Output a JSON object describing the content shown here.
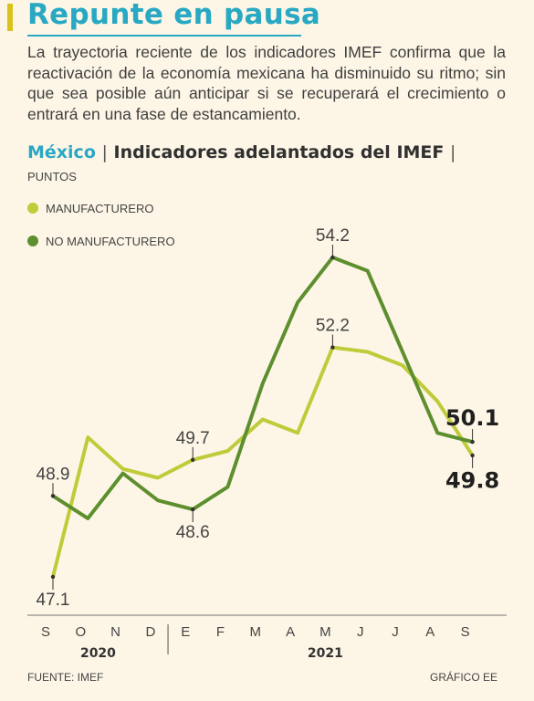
{
  "header": {
    "title": "Repunte en pausa",
    "intro": "La trayectoria reciente de los indicadores IMEF confirma que la reactivación de la economía mexicana ha disminuido su ritmo; sin que sea posible aún anticipar si se recuperará el crecimiento o entrará en una fase de estancamiento.",
    "accent_color": "#d9c21a",
    "title_color": "#29a8c4"
  },
  "chart_heading": {
    "country": "México",
    "separator": "|",
    "title": "Indicadores adelantados del IMEF",
    "units": "PUNTOS"
  },
  "chart_data": {
    "type": "line",
    "x": [
      "S",
      "O",
      "N",
      "D",
      "E",
      "F",
      "M",
      "A",
      "M",
      "J",
      "J",
      "A",
      "S"
    ],
    "years": [
      {
        "label": "2020",
        "months": [
          "S",
          "O",
          "N",
          "D"
        ]
      },
      {
        "label": "2021",
        "months": [
          "E",
          "F",
          "M",
          "A",
          "M",
          "J",
          "J",
          "A",
          "S"
        ]
      }
    ],
    "ylim": [
      46.5,
      55.0
    ],
    "grid": false,
    "legend_position": "top-left",
    "series": [
      {
        "name": "MANUFACTURERO",
        "color": "#bfcb3a",
        "values": [
          47.1,
          50.2,
          49.5,
          49.3,
          49.7,
          49.9,
          50.6,
          50.3,
          52.2,
          52.1,
          51.8,
          51.0,
          49.8
        ]
      },
      {
        "name": "NO MANUFACTURERO",
        "color": "#5e8f2e",
        "values": [
          48.9,
          48.4,
          49.4,
          48.8,
          48.6,
          49.1,
          51.4,
          53.2,
          54.2,
          53.9,
          52.1,
          50.3,
          50.1
        ]
      }
    ],
    "annotations": [
      {
        "series": 0,
        "index": 0,
        "text": "47.1",
        "placement": "below",
        "bold": false
      },
      {
        "series": 1,
        "index": 0,
        "text": "48.9",
        "placement": "above",
        "bold": false
      },
      {
        "series": 0,
        "index": 4,
        "text": "49.7",
        "placement": "above",
        "bold": false
      },
      {
        "series": 1,
        "index": 4,
        "text": "48.6",
        "placement": "below",
        "bold": false
      },
      {
        "series": 0,
        "index": 8,
        "text": "52.2",
        "placement": "above",
        "bold": false
      },
      {
        "series": 1,
        "index": 8,
        "text": "54.2",
        "placement": "above",
        "bold": false
      },
      {
        "series": 1,
        "index": 12,
        "text": "50.1",
        "placement": "above",
        "bold": true
      },
      {
        "series": 0,
        "index": 12,
        "text": "49.8",
        "placement": "below",
        "bold": true
      }
    ]
  },
  "footer": {
    "source": "FUENTE: IMEF",
    "credit": "GRÁFICO EE"
  }
}
